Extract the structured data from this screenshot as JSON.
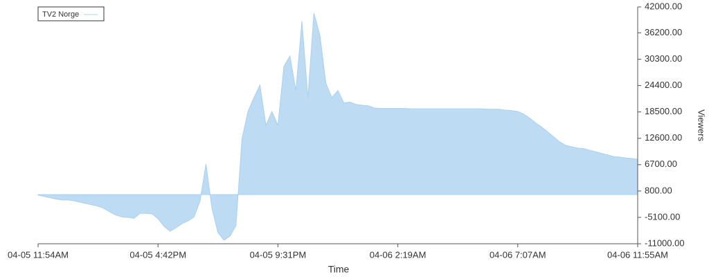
{
  "chart_data": {
    "type": "area",
    "x_label": "Time",
    "y_label": "Viewers",
    "legend": "top-left",
    "categories": [
      "04-05 11:54AM",
      null,
      null,
      null,
      null,
      null,
      null,
      null,
      null,
      null,
      null,
      null,
      null,
      null,
      null,
      null,
      null,
      null,
      null,
      null,
      "04-05 4:42PM",
      null,
      null,
      null,
      null,
      null,
      null,
      null,
      null,
      null,
      null,
      null,
      null,
      null,
      null,
      null,
      null,
      null,
      null,
      null,
      "04-05 9:31PM",
      null,
      null,
      null,
      null,
      null,
      null,
      null,
      null,
      null,
      null,
      null,
      null,
      null,
      null,
      null,
      null,
      null,
      null,
      null,
      "04-06 2:19AM",
      null,
      null,
      null,
      null,
      null,
      null,
      null,
      null,
      null,
      null,
      null,
      null,
      null,
      null,
      null,
      null,
      null,
      null,
      null,
      "04-06 7:07AM",
      null,
      null,
      null,
      null,
      null,
      null,
      null,
      null,
      null,
      null,
      null,
      null,
      null,
      null,
      null,
      null,
      null,
      null,
      null,
      "04-06 11:55AM"
    ],
    "series": [
      {
        "name": "TV2 Norge",
        "color": "#a9d0f0",
        "fill": "#bddcf4",
        "values": [
          -100,
          -400,
          -700,
          -1000,
          -1200,
          -1200,
          -1400,
          -1700,
          -2000,
          -2300,
          -2600,
          -3100,
          -3900,
          -4600,
          -5000,
          -5100,
          -5300,
          -4200,
          -4200,
          -4300,
          -5400,
          -7100,
          -8200,
          -7400,
          -6500,
          -5900,
          -5000,
          -1500,
          6800,
          -3100,
          -8500,
          -10200,
          -9300,
          -6900,
          12400,
          18600,
          21700,
          24500,
          15500,
          18600,
          15500,
          28700,
          31000,
          23300,
          38800,
          21700,
          40600,
          35700,
          24900,
          21700,
          23300,
          20500,
          20700,
          20200,
          20000,
          19900,
          19400,
          19300,
          19300,
          19300,
          19300,
          19300,
          19200,
          19200,
          19200,
          19200,
          19200,
          19200,
          19200,
          19200,
          19200,
          19200,
          19200,
          19200,
          19200,
          19100,
          19100,
          19100,
          18900,
          18800,
          18600,
          18000,
          17100,
          16000,
          15100,
          14000,
          12900,
          11800,
          11000,
          10700,
          10400,
          10300,
          9900,
          9600,
          9200,
          8900,
          8500,
          8400,
          8200,
          8100,
          7900
        ]
      }
    ],
    "ylim": [
      -11000,
      42000
    ],
    "yticks": [
      {
        "value": -11000,
        "label": "-11000.00"
      },
      {
        "value": -5100,
        "label": "-5100.00"
      },
      {
        "value": 800,
        "label": "800.00"
      },
      {
        "value": 6700,
        "label": "6700.00"
      },
      {
        "value": 12600,
        "label": "12600.00"
      },
      {
        "value": 18500,
        "label": "18500.00"
      },
      {
        "value": 24400,
        "label": "24400.00"
      },
      {
        "value": 30300,
        "label": "30300.00"
      },
      {
        "value": 36200,
        "label": "36200.00"
      },
      {
        "value": 42000,
        "label": "42000.00"
      }
    ]
  }
}
